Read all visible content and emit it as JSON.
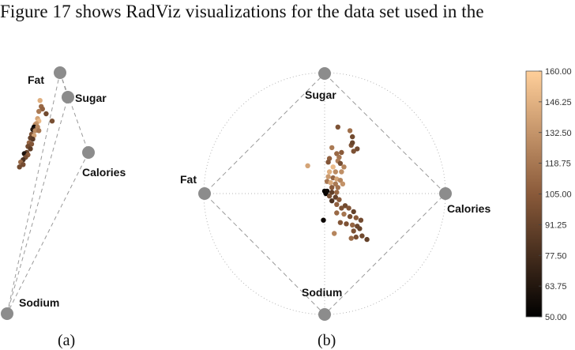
{
  "text_line": "Figure 17 shows RadViz visualizations for the data set used in the",
  "panels": [
    {
      "label": "(a)",
      "anchors": {
        "fat": "Fat",
        "sugar": "Sugar",
        "calories": "Calories",
        "sodium": "Sodium"
      }
    },
    {
      "label": "(b)",
      "anchors": {
        "sugar": "Sugar",
        "fat": "Fat",
        "calories": "Calories",
        "sodium": "Sodium"
      }
    }
  ],
  "colorbar": {
    "min": 50,
    "max": 160,
    "ticks": [
      "160.00",
      "146.25",
      "132.50",
      "118.75",
      "105.00",
      "91.25",
      "77.50",
      "63.75",
      "50.00"
    ],
    "colors": {
      "low": "#000000",
      "mid": "#8a5a3a",
      "high": "#ffcf9a"
    }
  },
  "chart_data": [
    {
      "type": "scatter",
      "title": "",
      "xlabel": "",
      "ylabel": "",
      "anchors": [
        "Fat",
        "Sugar",
        "Calories",
        "Sodium"
      ],
      "grid": false,
      "points": [
        {
          "x": 0.07,
          "y": 0.77,
          "v": 145
        },
        {
          "x": 0.08,
          "y": 0.72,
          "v": 112
        },
        {
          "x": 0.09,
          "y": 0.7,
          "v": 108
        },
        {
          "x": 0.06,
          "y": 0.68,
          "v": 120
        },
        {
          "x": 0.12,
          "y": 0.66,
          "v": 95
        },
        {
          "x": 0.17,
          "y": 0.6,
          "v": 98
        },
        {
          "x": 0.05,
          "y": 0.62,
          "v": 140
        },
        {
          "x": 0.06,
          "y": 0.6,
          "v": 150
        },
        {
          "x": 0.04,
          "y": 0.58,
          "v": 135
        },
        {
          "x": 0.03,
          "y": 0.57,
          "v": 130
        },
        {
          "x": 0.02,
          "y": 0.55,
          "v": 55
        },
        {
          "x": 0.05,
          "y": 0.55,
          "v": 125
        },
        {
          "x": 0.01,
          "y": 0.53,
          "v": 65
        },
        {
          "x": 0.03,
          "y": 0.52,
          "v": 128
        },
        {
          "x": 0.06,
          "y": 0.52,
          "v": 118
        },
        {
          "x": 0.0,
          "y": 0.49,
          "v": 100
        },
        {
          "x": 0.02,
          "y": 0.48,
          "v": 138
        },
        {
          "x": -0.01,
          "y": 0.46,
          "v": 90
        },
        {
          "x": 0.01,
          "y": 0.45,
          "v": 85
        },
        {
          "x": -0.02,
          "y": 0.42,
          "v": 110
        },
        {
          "x": 0.0,
          "y": 0.41,
          "v": 102
        },
        {
          "x": -0.03,
          "y": 0.39,
          "v": 95
        },
        {
          "x": -0.01,
          "y": 0.37,
          "v": 88
        },
        {
          "x": -0.04,
          "y": 0.34,
          "v": 92
        },
        {
          "x": -0.06,
          "y": 0.33,
          "v": 62
        },
        {
          "x": -0.03,
          "y": 0.32,
          "v": 105
        },
        {
          "x": -0.05,
          "y": 0.3,
          "v": 98
        },
        {
          "x": -0.07,
          "y": 0.28,
          "v": 80
        },
        {
          "x": -0.09,
          "y": 0.26,
          "v": 112
        },
        {
          "x": -0.07,
          "y": 0.24,
          "v": 97
        },
        {
          "x": -0.1,
          "y": 0.22,
          "v": 95
        }
      ],
      "color_value_range": [
        50,
        160
      ]
    },
    {
      "type": "scatter",
      "title": "",
      "xlabel": "",
      "ylabel": "",
      "anchors": [
        "Sugar",
        "Fat",
        "Calories",
        "Sodium"
      ],
      "grid": true,
      "points": [
        {
          "x": 0.11,
          "y": 0.55,
          "v": 100
        },
        {
          "x": 0.21,
          "y": 0.52,
          "v": 115
        },
        {
          "x": 0.23,
          "y": 0.47,
          "v": 95
        },
        {
          "x": 0.22,
          "y": 0.4,
          "v": 100
        },
        {
          "x": 0.06,
          "y": 0.38,
          "v": 120
        },
        {
          "x": 0.14,
          "y": 0.34,
          "v": 105
        },
        {
          "x": 0.1,
          "y": 0.33,
          "v": 112
        },
        {
          "x": 0.12,
          "y": 0.3,
          "v": 118
        },
        {
          "x": 0.11,
          "y": 0.27,
          "v": 122
        },
        {
          "x": -0.14,
          "y": 0.23,
          "v": 140
        },
        {
          "x": 0.04,
          "y": 0.29,
          "v": 108
        },
        {
          "x": 0.03,
          "y": 0.26,
          "v": 102
        },
        {
          "x": 0.13,
          "y": 0.25,
          "v": 98
        },
        {
          "x": 0.16,
          "y": 0.22,
          "v": 125
        },
        {
          "x": 0.07,
          "y": 0.22,
          "v": 150
        },
        {
          "x": 0.09,
          "y": 0.18,
          "v": 128
        },
        {
          "x": 0.04,
          "y": 0.18,
          "v": 145
        },
        {
          "x": 0.14,
          "y": 0.18,
          "v": 130
        },
        {
          "x": 0.03,
          "y": 0.14,
          "v": 135
        },
        {
          "x": 0.07,
          "y": 0.13,
          "v": 110
        },
        {
          "x": 0.1,
          "y": 0.12,
          "v": 140
        },
        {
          "x": 0.13,
          "y": 0.11,
          "v": 125
        },
        {
          "x": 0.02,
          "y": 0.1,
          "v": 118
        },
        {
          "x": 0.05,
          "y": 0.09,
          "v": 142
        },
        {
          "x": 0.09,
          "y": 0.08,
          "v": 120
        },
        {
          "x": 0.15,
          "y": 0.08,
          "v": 132
        },
        {
          "x": 0.06,
          "y": 0.05,
          "v": 105
        },
        {
          "x": 0.11,
          "y": 0.05,
          "v": 116
        },
        {
          "x": 0.0,
          "y": 0.02,
          "v": 50
        },
        {
          "x": 0.01,
          "y": 0.0,
          "v": 52
        },
        {
          "x": 0.02,
          "y": 0.02,
          "v": 55
        },
        {
          "x": 0.06,
          "y": 0.01,
          "v": 88
        },
        {
          "x": 0.1,
          "y": 0.01,
          "v": 112
        },
        {
          "x": 0.04,
          "y": -0.02,
          "v": 98
        },
        {
          "x": 0.09,
          "y": -0.03,
          "v": 90
        },
        {
          "x": 0.12,
          "y": -0.05,
          "v": 105
        },
        {
          "x": 0.06,
          "y": -0.06,
          "v": 80
        },
        {
          "x": 0.1,
          "y": -0.09,
          "v": 108
        },
        {
          "x": 0.17,
          "y": -0.1,
          "v": 95
        },
        {
          "x": 0.14,
          "y": -0.12,
          "v": 100
        },
        {
          "x": 0.2,
          "y": -0.12,
          "v": 102
        },
        {
          "x": 0.24,
          "y": -0.15,
          "v": 90
        },
        {
          "x": 0.1,
          "y": -0.16,
          "v": 112
        },
        {
          "x": 0.16,
          "y": -0.17,
          "v": 118
        },
        {
          "x": 0.21,
          "y": -0.19,
          "v": 98
        },
        {
          "x": 0.26,
          "y": -0.2,
          "v": 105
        },
        {
          "x": 0.3,
          "y": -0.22,
          "v": 96
        },
        {
          "x": -0.01,
          "y": -0.22,
          "v": 55
        },
        {
          "x": 0.13,
          "y": -0.24,
          "v": 102
        },
        {
          "x": 0.18,
          "y": -0.25,
          "v": 100
        },
        {
          "x": 0.23,
          "y": -0.26,
          "v": 110
        },
        {
          "x": 0.27,
          "y": -0.27,
          "v": 94
        },
        {
          "x": 0.29,
          "y": -0.29,
          "v": 92
        },
        {
          "x": 0.24,
          "y": -0.31,
          "v": 100
        },
        {
          "x": 0.08,
          "y": -0.33,
          "v": 125
        },
        {
          "x": 0.26,
          "y": -0.36,
          "v": 98
        },
        {
          "x": 0.22,
          "y": -0.37,
          "v": 112
        },
        {
          "x": 0.31,
          "y": -0.35,
          "v": 95
        },
        {
          "x": 0.35,
          "y": -0.38,
          "v": 90
        },
        {
          "x": 0.23,
          "y": 0.42,
          "v": 92
        },
        {
          "x": 0.27,
          "y": 0.37,
          "v": 96
        },
        {
          "x": 0.24,
          "y": 0.35,
          "v": 100
        }
      ],
      "color_value_range": [
        50,
        160
      ]
    }
  ]
}
